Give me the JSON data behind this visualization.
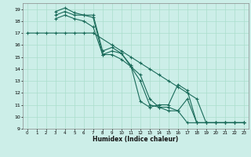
{
  "xlabel": "Humidex (Indice chaleur)",
  "background_color": "#cceee8",
  "grid_color": "#aaddcc",
  "line_color": "#1a6b5a",
  "xlim": [
    -0.5,
    23.5
  ],
  "ylim": [
    9,
    19.5
  ],
  "xticks": [
    0,
    1,
    2,
    3,
    4,
    5,
    6,
    7,
    8,
    9,
    10,
    11,
    12,
    13,
    14,
    15,
    16,
    17,
    18,
    19,
    20,
    21,
    22,
    23
  ],
  "yticks": [
    9,
    10,
    11,
    12,
    13,
    14,
    15,
    16,
    17,
    18,
    19
  ],
  "series": [
    {
      "x": [
        0,
        1,
        2,
        3,
        4,
        5,
        6,
        7,
        9,
        10,
        11,
        12,
        13,
        14,
        15,
        16,
        17,
        18,
        19,
        20,
        21,
        22,
        23
      ],
      "y": [
        17.0,
        17.0,
        17.0,
        17.0,
        17.0,
        17.0,
        17.0,
        17.0,
        16.0,
        15.5,
        15.0,
        14.5,
        14.0,
        13.5,
        13.0,
        12.5,
        12.0,
        11.5,
        9.5,
        9.5,
        9.5,
        9.5,
        9.5
      ]
    },
    {
      "x": [
        3,
        4,
        5,
        6,
        7,
        8,
        9,
        10,
        11,
        12,
        13,
        14,
        15,
        16,
        17,
        18,
        19,
        20,
        21,
        22,
        23
      ],
      "y": [
        18.8,
        19.1,
        18.7,
        18.5,
        18.3,
        15.2,
        15.5,
        15.3,
        14.3,
        11.3,
        10.8,
        11.0,
        11.0,
        12.7,
        12.2,
        9.5,
        9.5,
        9.5,
        9.5,
        9.5,
        9.5
      ]
    },
    {
      "x": [
        3,
        4,
        5,
        6,
        7,
        8,
        9,
        10,
        11,
        12,
        13,
        14,
        15,
        16,
        17,
        18,
        19,
        20,
        21,
        22,
        23
      ],
      "y": [
        18.5,
        18.8,
        18.5,
        18.5,
        18.5,
        15.5,
        15.8,
        15.3,
        14.2,
        13.5,
        11.5,
        10.8,
        10.8,
        10.5,
        11.5,
        9.5,
        9.5,
        9.5,
        9.5,
        9.5,
        9.5
      ]
    },
    {
      "x": [
        3,
        4,
        5,
        6,
        7,
        8,
        9,
        10,
        11,
        12,
        13,
        14,
        15,
        16,
        17,
        18,
        19,
        20,
        21,
        22,
        23
      ],
      "y": [
        18.2,
        18.5,
        18.2,
        18.0,
        17.5,
        15.2,
        15.2,
        14.8,
        14.2,
        13.0,
        11.0,
        10.8,
        10.5,
        10.5,
        9.5,
        9.5,
        9.5,
        9.5,
        9.5,
        9.5,
        9.5
      ]
    }
  ]
}
